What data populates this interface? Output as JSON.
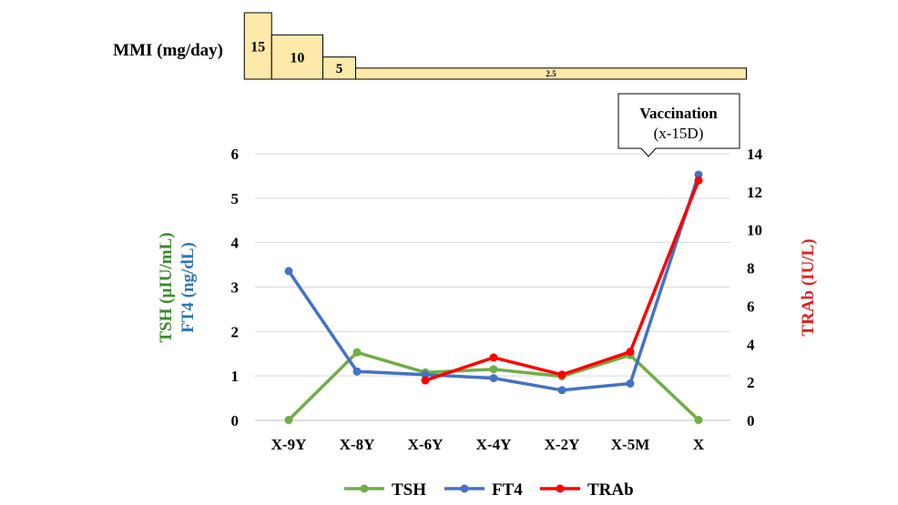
{
  "colors": {
    "tsh": "#70ad47",
    "ft4": "#4472c4",
    "trab": "#ff0000",
    "mmi_fill": "#fde9a9",
    "grid": "#d9d9d9",
    "axis_text": "#000000",
    "left_label_tsh": "#3a8a2a",
    "left_label_ft4": "#2e75b6",
    "right_label": "#e02020"
  },
  "mmi": {
    "label": "MMI (mg/day)",
    "segments": [
      {
        "label": "15",
        "dose": 15,
        "from_index": -0.65,
        "to_index": -0.25
      },
      {
        "label": "10",
        "dose": 10,
        "from_index": -0.25,
        "to_index": 0.5
      },
      {
        "label": "5",
        "dose": 5,
        "from_index": 0.5,
        "to_index": 0.98
      },
      {
        "label": "2.5",
        "dose": 2.5,
        "from_index": 0.98,
        "to_index": 6.7
      }
    ]
  },
  "callout": {
    "line1": "Vaccination",
    "line2": "(x-15D)"
  },
  "chart_data": {
    "type": "line",
    "categories": [
      "X-9Y",
      "X-8Y",
      "X-6Y",
      "X-4Y",
      "X-2Y",
      "X-5M",
      "X"
    ],
    "left_axis": {
      "label_tsh": "TSH (µIU/mL)",
      "label_ft4": "FT4 (ng/dL)",
      "ylim": [
        0,
        6
      ],
      "ticks": [
        "0",
        "1",
        "2",
        "3",
        "4",
        "5",
        "6"
      ]
    },
    "right_axis": {
      "label": "TRAb (IU/L)",
      "ylim": [
        0,
        14
      ],
      "ticks": [
        "0",
        "2",
        "4",
        "6",
        "8",
        "10",
        "12",
        "14"
      ]
    },
    "grid": true,
    "legend_position": "bottom",
    "series": [
      {
        "name": "TSH",
        "axis": "left",
        "color": "#70ad47",
        "values": [
          0.01,
          1.53,
          1.08,
          1.15,
          0.99,
          1.47,
          0.01
        ]
      },
      {
        "name": "FT4",
        "axis": "left",
        "color": "#4472c4",
        "values": [
          3.36,
          1.1,
          1.03,
          0.95,
          0.68,
          0.83,
          5.53
        ]
      },
      {
        "name": "TRAb",
        "axis": "right",
        "color": "#ff0000",
        "values": [
          null,
          null,
          2.1,
          3.3,
          2.4,
          3.6,
          12.6
        ]
      }
    ]
  }
}
